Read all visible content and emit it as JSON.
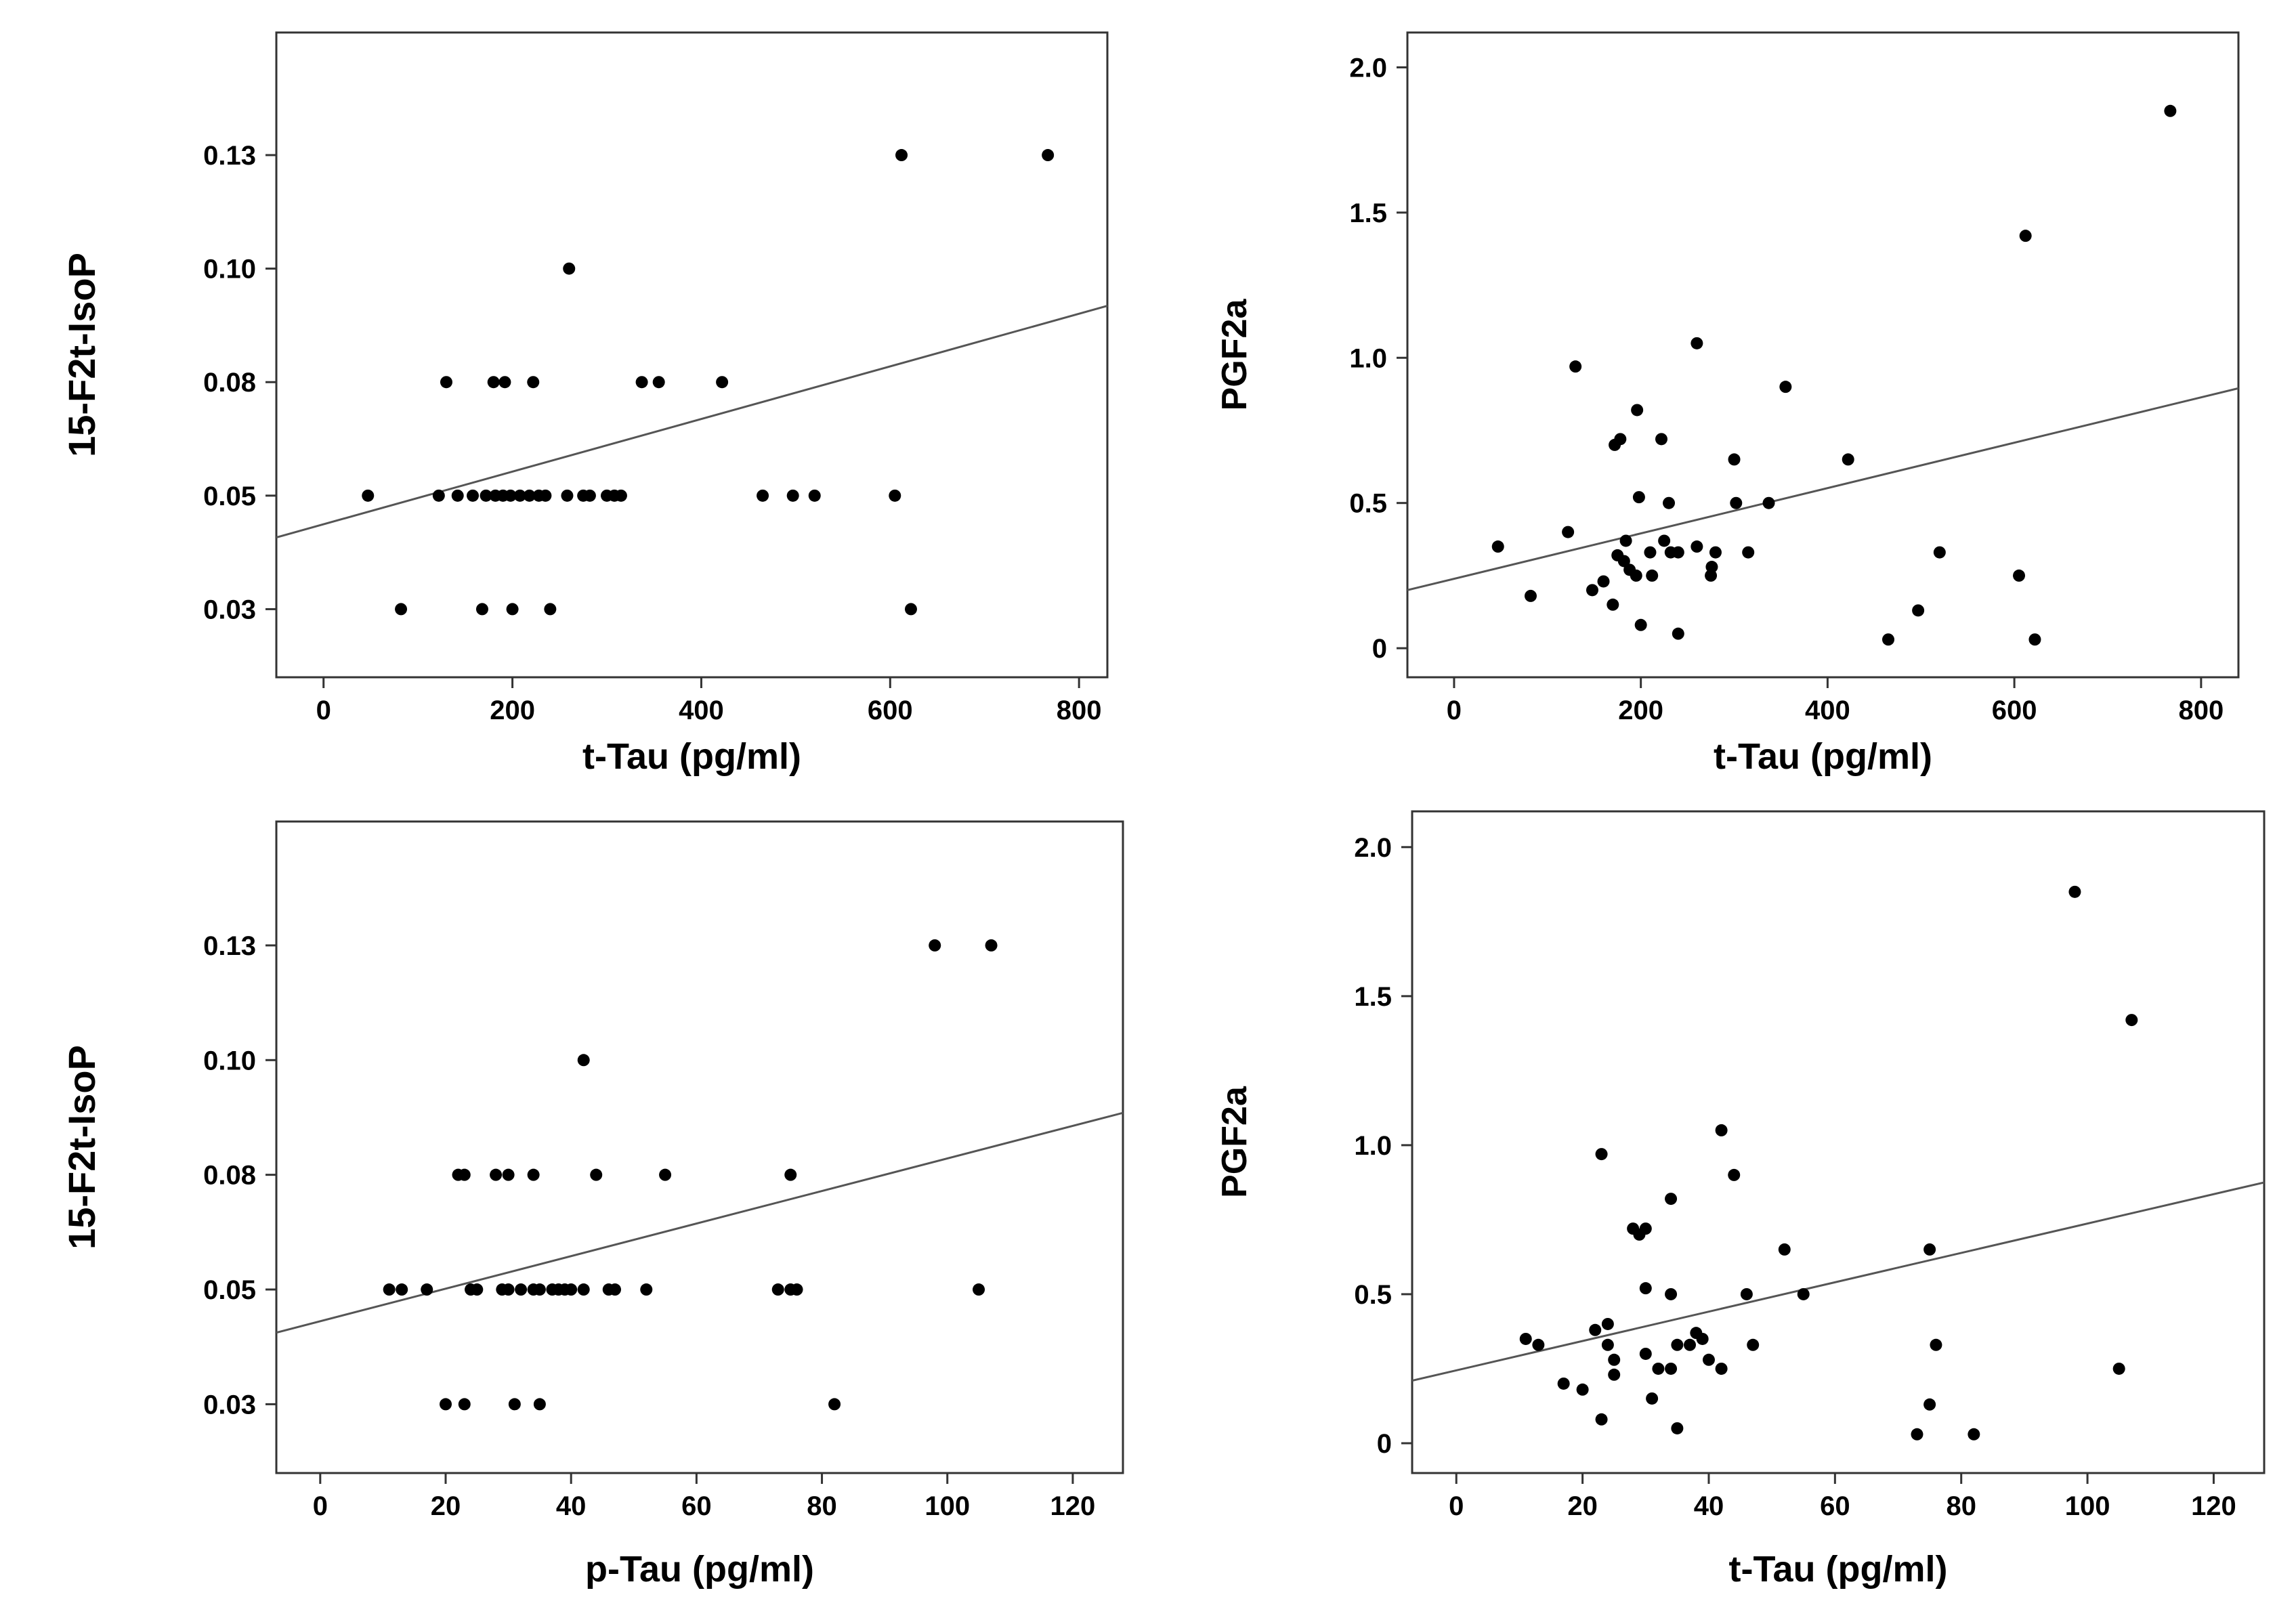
{
  "chart_data": [
    {
      "type": "scatter",
      "title": "",
      "xlabel": "t-Tau (pg/ml)",
      "ylabel": "15-F2t-IsoP",
      "xlim": [
        -50,
        830
      ],
      "ylim": [
        0.01,
        0.152
      ],
      "xticks": [
        0,
        200,
        400,
        600,
        800
      ],
      "xtick_labels": [
        "0",
        "200",
        "400",
        "600",
        "800"
      ],
      "yticks": [
        0.025,
        0.05,
        0.075,
        0.1,
        0.125
      ],
      "ytick_labels": [
        "0.03",
        "0.05",
        "0.08",
        "0.10",
        "0.13"
      ],
      "fit_line": {
        "x": [
          -50,
          830
        ],
        "y": [
          0.0408,
          0.0918
        ]
      },
      "points": [
        [
          47,
          0.05
        ],
        [
          82,
          0.025
        ],
        [
          130,
          0.075
        ],
        [
          122,
          0.05
        ],
        [
          142,
          0.05
        ],
        [
          158,
          0.05
        ],
        [
          168,
          0.025
        ],
        [
          172,
          0.05
        ],
        [
          180,
          0.075
        ],
        [
          182,
          0.05
        ],
        [
          190,
          0.05
        ],
        [
          192,
          0.075
        ],
        [
          198,
          0.05
        ],
        [
          200,
          0.025
        ],
        [
          208,
          0.05
        ],
        [
          218,
          0.05
        ],
        [
          222,
          0.075
        ],
        [
          228,
          0.05
        ],
        [
          235,
          0.05
        ],
        [
          240,
          0.025
        ],
        [
          258,
          0.05
        ],
        [
          260,
          0.1
        ],
        [
          275,
          0.05
        ],
        [
          282,
          0.05
        ],
        [
          300,
          0.05
        ],
        [
          308,
          0.05
        ],
        [
          315,
          0.05
        ],
        [
          337,
          0.075
        ],
        [
          355,
          0.075
        ],
        [
          422,
          0.075
        ],
        [
          465,
          0.05
        ],
        [
          497,
          0.05
        ],
        [
          520,
          0.05
        ],
        [
          605,
          0.05
        ],
        [
          612,
          0.125
        ],
        [
          622,
          0.025
        ],
        [
          767,
          0.125
        ]
      ]
    },
    {
      "type": "scatter",
      "title": "",
      "xlabel": "t-Tau (pg/ml)",
      "ylabel": "PGF2a",
      "xlim": [
        -50,
        840
      ],
      "ylim": [
        -0.1,
        2.12
      ],
      "xticks": [
        0,
        200,
        400,
        600,
        800
      ],
      "xtick_labels": [
        "0",
        "200",
        "400",
        "600",
        "800"
      ],
      "yticks": [
        0,
        0.5,
        1.0,
        1.5,
        2.0
      ],
      "ytick_labels": [
        "0",
        "0.5",
        "1.0",
        "1.5",
        "2.0"
      ],
      "fit_line": {
        "x": [
          -50,
          840
        ],
        "y": [
          0.2,
          0.895
        ]
      },
      "points": [
        [
          47,
          0.35
        ],
        [
          82,
          0.18
        ],
        [
          122,
          0.4
        ],
        [
          130,
          0.97
        ],
        [
          148,
          0.2
        ],
        [
          160,
          0.23
        ],
        [
          170,
          0.15
        ],
        [
          172,
          0.7
        ],
        [
          175,
          0.32
        ],
        [
          178,
          0.72
        ],
        [
          182,
          0.3
        ],
        [
          184,
          0.37
        ],
        [
          188,
          0.27
        ],
        [
          195,
          0.25
        ],
        [
          196,
          0.82
        ],
        [
          198,
          0.52
        ],
        [
          200,
          0.08
        ],
        [
          210,
          0.33
        ],
        [
          212,
          0.25
        ],
        [
          222,
          0.72
        ],
        [
          225,
          0.37
        ],
        [
          230,
          0.5
        ],
        [
          232,
          0.33
        ],
        [
          240,
          0.33
        ],
        [
          240,
          0.05
        ],
        [
          260,
          1.05
        ],
        [
          260,
          0.35
        ],
        [
          275,
          0.25
        ],
        [
          276,
          0.28
        ],
        [
          280,
          0.33
        ],
        [
          300,
          0.65
        ],
        [
          302,
          0.5
        ],
        [
          315,
          0.33
        ],
        [
          337,
          0.5
        ],
        [
          355,
          0.9
        ],
        [
          422,
          0.65
        ],
        [
          465,
          0.03
        ],
        [
          497,
          0.13
        ],
        [
          520,
          0.33
        ],
        [
          605,
          0.25
        ],
        [
          612,
          1.42
        ],
        [
          622,
          0.03
        ],
        [
          767,
          1.85
        ]
      ]
    },
    {
      "type": "scatter",
      "title": "",
      "xlabel": "p-Tau (pg/ml)",
      "ylabel": "15-F2t-IsoP",
      "xlim": [
        -7,
        128
      ],
      "ylim": [
        0.01,
        0.152
      ],
      "xticks": [
        0,
        20,
        40,
        60,
        80,
        100,
        120
      ],
      "xtick_labels": [
        "0",
        "20",
        "40",
        "60",
        "80",
        "100",
        "120"
      ],
      "yticks": [
        0.025,
        0.05,
        0.075,
        0.1,
        0.125
      ],
      "ytick_labels": [
        "0.03",
        "0.05",
        "0.08",
        "0.10",
        "0.13"
      ],
      "fit_line": {
        "x": [
          -7,
          128
        ],
        "y": [
          0.0406,
          0.0885
        ]
      },
      "points": [
        [
          11,
          0.05
        ],
        [
          13,
          0.05
        ],
        [
          17,
          0.05
        ],
        [
          20,
          0.025
        ],
        [
          22,
          0.075
        ],
        [
          23,
          0.075
        ],
        [
          23,
          0.025
        ],
        [
          24,
          0.05
        ],
        [
          25,
          0.05
        ],
        [
          28,
          0.075
        ],
        [
          29,
          0.05
        ],
        [
          30,
          0.05
        ],
        [
          30,
          0.075
        ],
        [
          31,
          0.025
        ],
        [
          32,
          0.05
        ],
        [
          34,
          0.05
        ],
        [
          34,
          0.075
        ],
        [
          35,
          0.05
        ],
        [
          35,
          0.025
        ],
        [
          37,
          0.05
        ],
        [
          38,
          0.05
        ],
        [
          39,
          0.05
        ],
        [
          40,
          0.05
        ],
        [
          42,
          0.05
        ],
        [
          42,
          0.1
        ],
        [
          44,
          0.075
        ],
        [
          46,
          0.05
        ],
        [
          47,
          0.05
        ],
        [
          52,
          0.05
        ],
        [
          55,
          0.075
        ],
        [
          73,
          0.05
        ],
        [
          75,
          0.05
        ],
        [
          75,
          0.075
        ],
        [
          76,
          0.05
        ],
        [
          82,
          0.025
        ],
        [
          98,
          0.125
        ],
        [
          105,
          0.05
        ],
        [
          107,
          0.125
        ]
      ]
    },
    {
      "type": "scatter",
      "title": "",
      "xlabel": "t-Tau (pg/ml)",
      "ylabel": "PGF2a",
      "xlim": [
        -7,
        128
      ],
      "ylim": [
        -0.1,
        2.12
      ],
      "xticks": [
        0,
        20,
        40,
        60,
        80,
        100,
        120
      ],
      "xtick_labels": [
        "0",
        "20",
        "40",
        "60",
        "80",
        "100",
        "120"
      ],
      "yticks": [
        0,
        0.5,
        1.0,
        1.5,
        2.0
      ],
      "ytick_labels": [
        "0",
        "0.5",
        "1.0",
        "1.5",
        "2.0"
      ],
      "fit_line": {
        "x": [
          -7,
          128
        ],
        "y": [
          0.21,
          0.875
        ]
      },
      "points": [
        [
          11,
          0.35
        ],
        [
          13,
          0.33
        ],
        [
          17,
          0.2
        ],
        [
          20,
          0.18
        ],
        [
          22,
          0.38
        ],
        [
          23,
          0.08
        ],
        [
          23,
          0.97
        ],
        [
          24,
          0.4
        ],
        [
          24,
          0.33
        ],
        [
          25,
          0.28
        ],
        [
          25,
          0.23
        ],
        [
          28,
          0.72
        ],
        [
          29,
          0.7
        ],
        [
          30,
          0.72
        ],
        [
          30,
          0.52
        ],
        [
          30,
          0.3
        ],
        [
          31,
          0.15
        ],
        [
          32,
          0.25
        ],
        [
          34,
          0.25
        ],
        [
          34,
          0.82
        ],
        [
          34,
          0.5
        ],
        [
          35,
          0.05
        ],
        [
          35,
          0.33
        ],
        [
          37,
          0.33
        ],
        [
          38,
          0.37
        ],
        [
          39,
          0.35
        ],
        [
          40,
          0.28
        ],
        [
          42,
          0.25
        ],
        [
          42,
          1.05
        ],
        [
          44,
          0.9
        ],
        [
          46,
          0.5
        ],
        [
          47,
          0.33
        ],
        [
          52,
          0.65
        ],
        [
          55,
          0.5
        ],
        [
          73,
          0.03
        ],
        [
          75,
          0.65
        ],
        [
          75,
          0.13
        ],
        [
          76,
          0.33
        ],
        [
          82,
          0.03
        ],
        [
          98,
          1.85
        ],
        [
          105,
          0.25
        ],
        [
          107,
          1.42
        ]
      ]
    }
  ]
}
